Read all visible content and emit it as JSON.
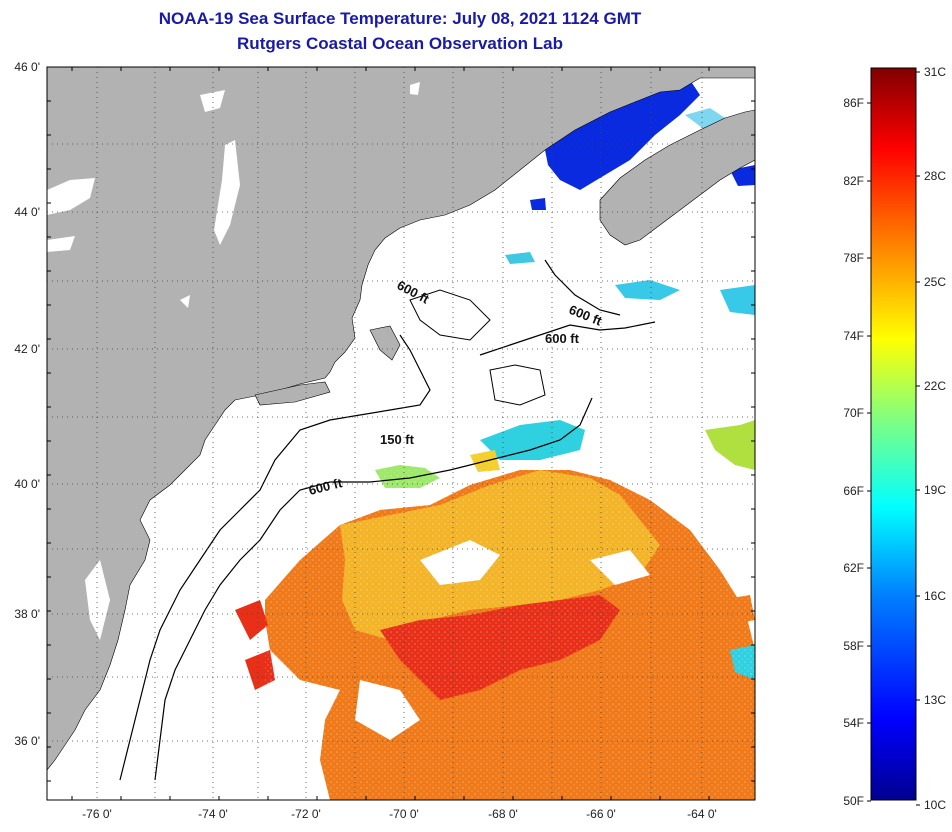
{
  "title": "NOAA-19 Sea Surface Temperature:  July 08, 2021 1124 GMT",
  "subtitle": "Rutgers Coastal Ocean Observation Lab",
  "lat_labels": [
    "46 0'",
    "44 0'",
    "42 0'",
    "40 0'",
    "38 0'",
    "36 0'"
  ],
  "lon_labels": [
    "-76 0'",
    "-74 0'",
    "-72 0'",
    "-70 0'",
    "-68 0'",
    "-66 0'",
    "-64 0'"
  ],
  "contour_labels": [
    {
      "text": "600 ft",
      "rotate": 28
    },
    {
      "text": "600 ft",
      "rotate": 22
    },
    {
      "text": "600 ft",
      "rotate": 0
    },
    {
      "text": "150 ft",
      "rotate": 0
    },
    {
      "text": "600 ft",
      "rotate": -14
    }
  ],
  "colorbar": {
    "celsius_labels": [
      "31C",
      "28C",
      "25C",
      "22C",
      "19C",
      "16C",
      "13C",
      "10C"
    ],
    "fahrenheit_labels": [
      "86F",
      "82F",
      "78F",
      "74F",
      "70F",
      "66F",
      "62F",
      "58F",
      "54F",
      "50F"
    ],
    "colors": [
      "#00008f",
      "#0000ff",
      "#0080ff",
      "#00ffff",
      "#80ff80",
      "#ffff00",
      "#ff8000",
      "#ff0000",
      "#800000"
    ]
  },
  "colors": {
    "land": "#b2b2b2",
    "title": "#1a1aa8",
    "sst_warm": "#f07a1a",
    "sst_hot": "#e83018",
    "sst_yellow": "#f3b428",
    "sst_cold": "#0a2adf",
    "sst_cyan": "#2fd0e0"
  }
}
